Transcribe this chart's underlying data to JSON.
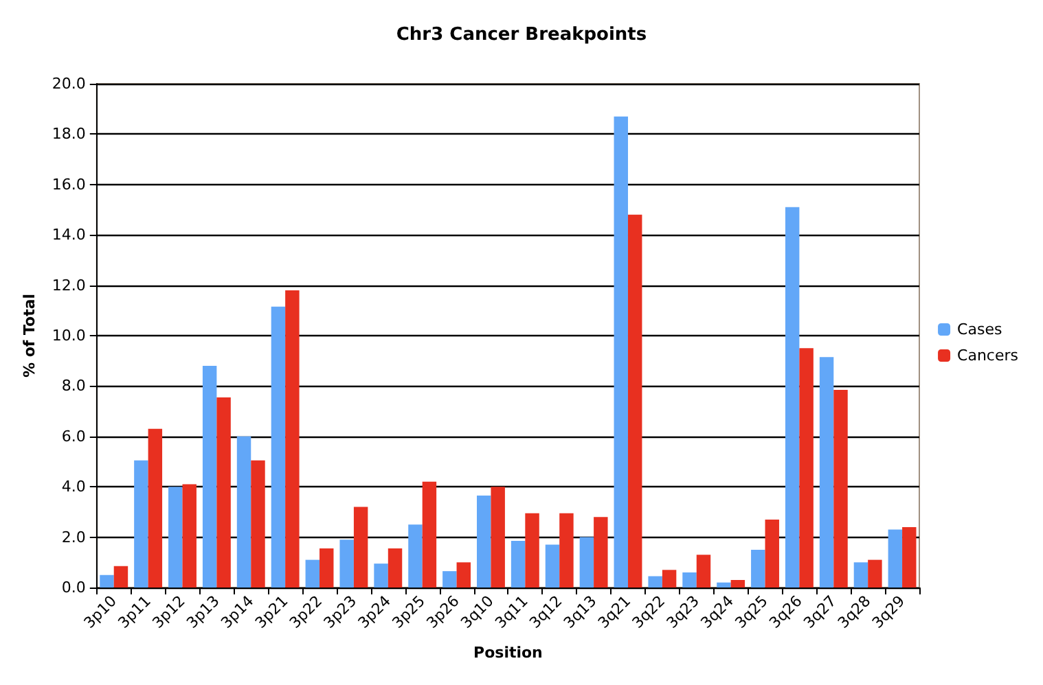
{
  "chart_data": {
    "type": "bar",
    "title": "Chr3 Cancer Breakpoints",
    "xlabel": "Position",
    "ylabel": "% of Total",
    "categories": [
      "3p10",
      "3p11",
      "3p12",
      "3p13",
      "3p14",
      "3p21",
      "3p22",
      "3p23",
      "3p24",
      "3p25",
      "3p26",
      "3q10",
      "3q11",
      "3q12",
      "3q13",
      "3q21",
      "3q22",
      "3q23",
      "3q24",
      "3q25",
      "3q26",
      "3q27",
      "3q28",
      "3q29"
    ],
    "series": [
      {
        "name": "Cases",
        "color": "#62a7f8",
        "values": [
          0.5,
          5.05,
          4.0,
          8.8,
          6.0,
          11.15,
          1.1,
          1.9,
          0.95,
          2.5,
          0.65,
          3.65,
          1.85,
          1.7,
          2.0,
          18.7,
          0.45,
          0.6,
          0.2,
          1.5,
          15.1,
          9.15,
          1.0,
          2.3
        ]
      },
      {
        "name": "Cancers",
        "color": "#e83020",
        "values": [
          0.85,
          6.3,
          4.1,
          7.55,
          5.05,
          11.8,
          1.55,
          3.2,
          1.55,
          4.2,
          1.0,
          4.0,
          2.95,
          2.95,
          2.8,
          14.8,
          0.7,
          1.3,
          0.3,
          2.7,
          9.5,
          7.85,
          1.1,
          2.4
        ]
      }
    ],
    "ylim": [
      0,
      20
    ],
    "yticks": [
      {
        "value": 0,
        "label": "0.0"
      },
      {
        "value": 2,
        "label": "2.0"
      },
      {
        "value": 4,
        "label": "4.0"
      },
      {
        "value": 6,
        "label": "6.0"
      },
      {
        "value": 8,
        "label": "8.0"
      },
      {
        "value": 10,
        "label": "10.0"
      },
      {
        "value": 12,
        "label": "12.0"
      },
      {
        "value": 14,
        "label": "14.0"
      },
      {
        "value": 16,
        "label": "16.0"
      },
      {
        "value": 18,
        "label": "18.0"
      },
      {
        "value": 20,
        "label": "20.0"
      }
    ],
    "grid": "y",
    "legend": "right"
  }
}
